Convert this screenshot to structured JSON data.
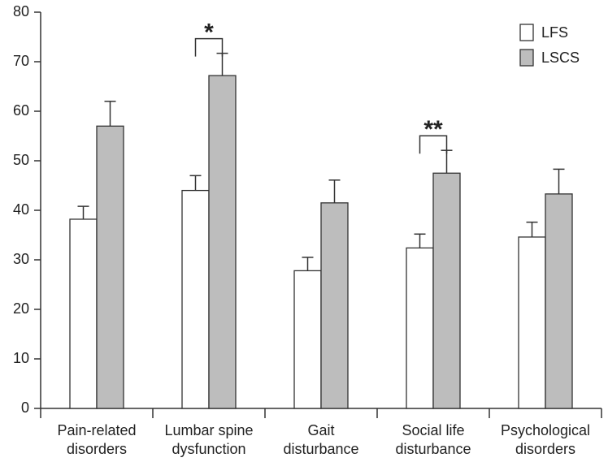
{
  "chart_data": {
    "type": "bar",
    "categories": [
      [
        "Pain-related",
        "disorders"
      ],
      [
        "Lumbar spine",
        "dysfunction"
      ],
      [
        "Gait",
        "disturbance"
      ],
      [
        "Social life",
        "disturbance"
      ],
      [
        "Psychological",
        "disorders"
      ]
    ],
    "series": [
      {
        "name": "LFS",
        "color": "#ffffff",
        "values": [
          38.2,
          44,
          27.8,
          32.4,
          34.6
        ],
        "errors": [
          2.6,
          3,
          2.7,
          2.8,
          3
        ]
      },
      {
        "name": "LSCS",
        "color": "#bdbdbd",
        "values": [
          57,
          67.2,
          41.5,
          47.5,
          43.3
        ],
        "errors": [
          5,
          4.5,
          4.6,
          4.6,
          5
        ]
      }
    ],
    "annotations": [
      {
        "text": "*",
        "category": 1
      },
      {
        "text": "**",
        "category": 3
      }
    ],
    "ylim": [
      0,
      80
    ],
    "yticks": [
      0,
      10,
      20,
      30,
      40,
      50,
      60,
      70,
      80
    ],
    "legend": "top-right"
  }
}
